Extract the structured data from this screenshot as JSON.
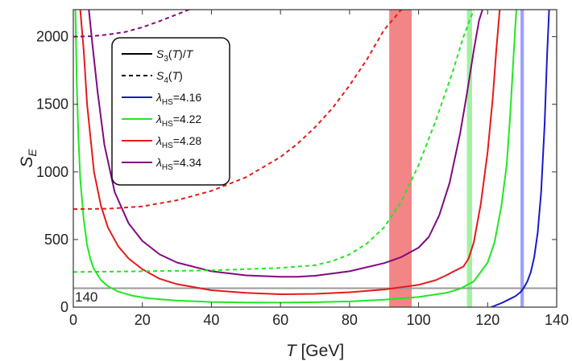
{
  "chart_data": {
    "type": "line",
    "title": "",
    "xlabel": "T [GeV]",
    "ylabel": "S_E",
    "xlim": [
      0,
      140
    ],
    "ylim": [
      0,
      2200
    ],
    "xticks": [
      0,
      20,
      40,
      60,
      80,
      100,
      120,
      140
    ],
    "yticks": [
      0,
      500,
      1000,
      1500,
      2000
    ],
    "legend_placement": "top-left",
    "legend": [
      {
        "label": "S3(T)/T",
        "style": "solid",
        "color": "#000000"
      },
      {
        "label": "S4(T)",
        "style": "dashed",
        "color": "#000000"
      },
      {
        "label": "λHS=4.16",
        "style": "solid",
        "color": "#1a1acc"
      },
      {
        "label": "λHS=4.22",
        "style": "solid",
        "color": "#22e622"
      },
      {
        "label": "λHS=4.28",
        "style": "solid",
        "color": "#e61a1a"
      },
      {
        "label": "λHS=4.34",
        "style": "solid",
        "color": "#800a80"
      }
    ],
    "reference_line": {
      "y": 140,
      "label": "140",
      "color": "#999999"
    },
    "bands": [
      {
        "x": [
          91.5,
          98
        ],
        "color": "#f07070"
      },
      {
        "x": [
          114,
          115.5
        ],
        "color": "#90ee90"
      },
      {
        "x": [
          129.5,
          130.5
        ],
        "color": "#8f8fff"
      }
    ],
    "series": [
      {
        "name": "λHS=4.16",
        "kind": "S3(T)/T",
        "color": "#1a1acc",
        "dashed": false,
        "x": [
          121,
          124,
          126,
          128,
          129.5,
          130.5,
          131.5,
          132.5,
          133.5,
          134.5,
          135.5,
          136.5,
          137.2,
          137.8
        ],
        "y": [
          0,
          30,
          55,
          80,
          110,
          145,
          190,
          260,
          370,
          550,
          850,
          1350,
          1850,
          2200
        ]
      },
      {
        "name": "λHS=4.22",
        "kind": "S3(T)/T",
        "color": "#22e622",
        "dashed": false,
        "x": [
          0.6,
          1,
          1.5,
          2,
          3,
          4,
          5,
          6,
          8,
          10,
          13,
          17,
          22,
          30,
          40,
          50,
          60,
          70,
          80,
          90,
          100,
          108,
          112,
          116,
          120,
          122,
          124,
          125.5,
          126.5,
          127.5,
          128.3
        ],
        "y": [
          2200,
          1650,
          1250,
          950,
          650,
          460,
          350,
          280,
          200,
          155,
          115,
          85,
          65,
          48,
          38,
          34,
          33,
          36,
          42,
          55,
          75,
          105,
          135,
          190,
          330,
          480,
          750,
          1050,
          1400,
          1850,
          2200
        ]
      },
      {
        "name": "λHS=4.28",
        "kind": "S3(T)/T",
        "color": "#e61a1a",
        "dashed": false,
        "x": [
          2,
          3,
          4,
          6,
          8,
          10,
          13,
          16,
          20,
          25,
          30,
          40,
          50,
          60,
          70,
          80,
          90,
          100,
          105,
          108,
          110,
          111,
          113,
          114.5,
          116,
          118,
          120,
          121.5,
          122.5,
          123.5
        ],
        "y": [
          2200,
          1900,
          1500,
          1000,
          750,
          590,
          450,
          360,
          280,
          210,
          170,
          125,
          105,
          95,
          98,
          110,
          130,
          165,
          200,
          235,
          262,
          275,
          300,
          360,
          480,
          760,
          1150,
          1550,
          1900,
          2200
        ]
      },
      {
        "name": "λHS=4.34",
        "kind": "S3(T)/T",
        "color": "#800a80",
        "dashed": false,
        "x": [
          4.5,
          5.5,
          7,
          9,
          12,
          16,
          20,
          25,
          30,
          40,
          50,
          60,
          65,
          70,
          80,
          90,
          95,
          100,
          103,
          106,
          109,
          112,
          114,
          116,
          117.5,
          118.5
        ],
        "y": [
          2200,
          1950,
          1600,
          1200,
          850,
          620,
          490,
          390,
          330,
          265,
          235,
          225,
          225,
          232,
          265,
          325,
          370,
          440,
          520,
          680,
          920,
          1280,
          1580,
          1900,
          2120,
          2200
        ]
      },
      {
        "name": "λHS=4.22",
        "kind": "S4(T)",
        "color": "#22e622",
        "dashed": true,
        "x": [
          0,
          20,
          40,
          60,
          70,
          75,
          80,
          85,
          90,
          95,
          100,
          105,
          110,
          113,
          116,
          118
        ],
        "y": [
          260,
          265,
          272,
          290,
          310,
          340,
          390,
          470,
          590,
          780,
          1050,
          1380,
          1750,
          2000,
          2200,
          2260
        ]
      },
      {
        "name": "λHS=4.28",
        "kind": "S4(T)",
        "color": "#e61a1a",
        "dashed": true,
        "x": [
          0,
          10,
          20,
          30,
          40,
          50,
          60,
          65,
          70,
          75,
          80,
          85,
          90,
          95,
          100,
          103,
          106,
          108
        ],
        "y": [
          725,
          728,
          745,
          790,
          860,
          960,
          1110,
          1210,
          1330,
          1470,
          1640,
          1830,
          2050,
          2200,
          2300,
          2300,
          2300,
          2300
        ]
      },
      {
        "name": "λHS=4.34",
        "kind": "S4(T)",
        "color": "#800a80",
        "dashed": true,
        "x": [
          0,
          5,
          10,
          15,
          20,
          25,
          28,
          31,
          34,
          36
        ],
        "y": [
          2000,
          2003,
          2015,
          2035,
          2070,
          2115,
          2145,
          2175,
          2205,
          2230
        ]
      }
    ]
  }
}
